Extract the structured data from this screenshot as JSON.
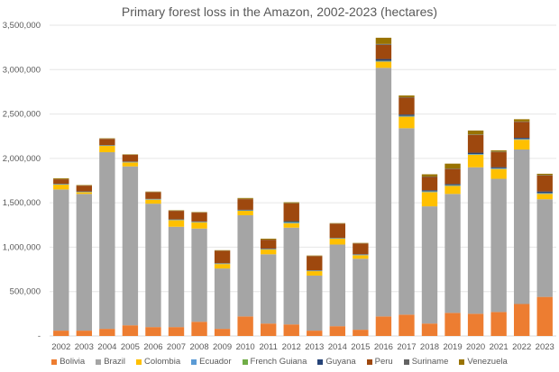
{
  "chart_data": {
    "type": "bar",
    "stacked": true,
    "title": "Primary forest loss in the Amazon, 2002-2023 (hectares)",
    "xlabel": "",
    "ylabel": "",
    "ylim": [
      0,
      3500000
    ],
    "yticks": [
      0,
      500000,
      1000000,
      1500000,
      2000000,
      2500000,
      3000000,
      3500000
    ],
    "ytick_labels": [
      "-",
      "500,000",
      "1,000,000",
      "1,500,000",
      "2,000,000",
      "2,500,000",
      "3,000,000",
      "3,500,000"
    ],
    "grid": true,
    "legend_position": "bottom",
    "categories": [
      "2002",
      "2003",
      "2004",
      "2005",
      "2006",
      "2007",
      "2008",
      "2009",
      "2010",
      "2011",
      "2012",
      "2013",
      "2014",
      "2015",
      "2016",
      "2017",
      "2018",
      "2019",
      "2020",
      "2021",
      "2022",
      "2023"
    ],
    "series": [
      {
        "name": "Bolivia",
        "color": "#ED7D31",
        "values": [
          60000,
          60000,
          80000,
          120000,
          100000,
          100000,
          160000,
          80000,
          220000,
          140000,
          130000,
          60000,
          110000,
          70000,
          220000,
          240000,
          140000,
          260000,
          250000,
          270000,
          360000,
          440000
        ]
      },
      {
        "name": "Brazil",
        "color": "#A5A5A5",
        "values": [
          1590000,
          1540000,
          1990000,
          1790000,
          1390000,
          1130000,
          1050000,
          680000,
          1140000,
          780000,
          1090000,
          620000,
          920000,
          800000,
          2800000,
          2100000,
          1320000,
          1340000,
          1650000,
          1500000,
          1740000,
          1100000
        ]
      },
      {
        "name": "Colombia",
        "color": "#FFC000",
        "values": [
          55000,
          20000,
          70000,
          45000,
          45000,
          75000,
          70000,
          50000,
          50000,
          55000,
          50000,
          50000,
          65000,
          40000,
          70000,
          130000,
          160000,
          90000,
          140000,
          110000,
          110000,
          60000
        ]
      },
      {
        "name": "Ecuador",
        "color": "#5B9BD5",
        "values": [
          4000,
          3000,
          4000,
          4000,
          4000,
          4000,
          4000,
          4000,
          4000,
          4000,
          8000,
          4000,
          4000,
          4000,
          6000,
          6000,
          6000,
          6000,
          6000,
          6000,
          6000,
          6000
        ]
      },
      {
        "name": "French Guiana",
        "color": "#70AD47",
        "values": [
          2000,
          2000,
          2000,
          2000,
          2000,
          2000,
          2000,
          2000,
          2000,
          2000,
          5000,
          2000,
          2000,
          2000,
          3000,
          3000,
          3000,
          3000,
          3000,
          3000,
          3000,
          3000
        ]
      },
      {
        "name": "Guyana",
        "color": "#264478",
        "values": [
          3000,
          3000,
          3000,
          3000,
          3000,
          3000,
          3000,
          3000,
          5000,
          3000,
          10000,
          3000,
          3000,
          5000,
          20000,
          15000,
          12000,
          12000,
          15000,
          12000,
          12000,
          18000
        ]
      },
      {
        "name": "Peru",
        "color": "#9E480E",
        "values": [
          50000,
          65000,
          70000,
          75000,
          75000,
          95000,
          100000,
          140000,
          120000,
          100000,
          200000,
          160000,
          160000,
          120000,
          160000,
          190000,
          150000,
          170000,
          200000,
          170000,
          180000,
          180000
        ]
      },
      {
        "name": "Suriname",
        "color": "#636363",
        "values": [
          2000,
          2000,
          2000,
          2000,
          2000,
          2000,
          2000,
          2000,
          3000,
          2000,
          3000,
          2000,
          2000,
          2000,
          10000,
          5000,
          5000,
          5000,
          5000,
          5000,
          5000,
          5000
        ]
      },
      {
        "name": "Venezuela",
        "color": "#997300",
        "values": [
          10000,
          5000,
          5000,
          5000,
          5000,
          5000,
          5000,
          5000,
          10000,
          10000,
          10000,
          5000,
          5000,
          5000,
          70000,
          20000,
          25000,
          55000,
          45000,
          15000,
          25000,
          15000
        ]
      }
    ]
  }
}
